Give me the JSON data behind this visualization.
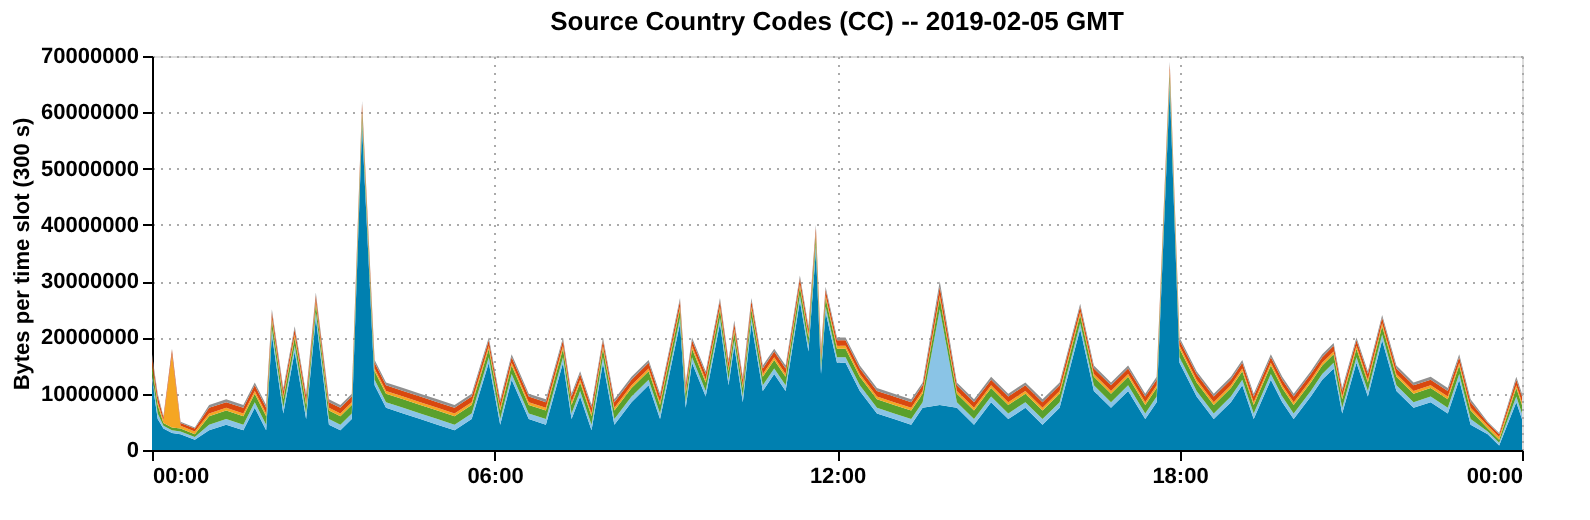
{
  "chart_data": {
    "type": "area",
    "stacked": true,
    "title": "Source Country Codes (CC) -- 2019-02-05 GMT",
    "ylabel": "Bytes per time slot (300 s)",
    "x": [
      0.0,
      0.1,
      0.2,
      0.35,
      0.5,
      0.75,
      1.0,
      1.3,
      1.6,
      1.8,
      2.0,
      2.1,
      2.3,
      2.5,
      2.7,
      2.87,
      3.1,
      3.3,
      3.5,
      3.68,
      3.9,
      4.1,
      4.4,
      4.7,
      5.0,
      5.3,
      5.6,
      5.9,
      6.1,
      6.3,
      6.6,
      6.9,
      7.2,
      7.35,
      7.5,
      7.7,
      7.9,
      8.1,
      8.4,
      8.7,
      8.9,
      9.25,
      9.35,
      9.46,
      9.7,
      9.95,
      10.1,
      10.2,
      10.35,
      10.5,
      10.7,
      10.9,
      11.1,
      11.35,
      11.5,
      11.63,
      11.72,
      11.8,
      12.0,
      12.15,
      12.4,
      12.7,
      13.0,
      13.3,
      13.5,
      13.8,
      14.1,
      14.4,
      14.7,
      15.0,
      15.3,
      15.6,
      15.9,
      16.26,
      16.5,
      16.8,
      17.1,
      17.4,
      17.6,
      17.83,
      18.0,
      18.3,
      18.6,
      18.9,
      19.1,
      19.3,
      19.6,
      19.8,
      20.0,
      20.3,
      20.5,
      20.7,
      20.85,
      21.1,
      21.3,
      21.55,
      21.8,
      22.1,
      22.4,
      22.7,
      22.9,
      23.1,
      23.4,
      23.6,
      23.9,
      24.0
    ],
    "series": [
      {
        "color": "#0080b0",
        "values": [
          12500000,
          5500000,
          3800000,
          3000000,
          2800000,
          1800000,
          3500000,
          4500000,
          3500000,
          7500000,
          3500000,
          20500000,
          6500000,
          17500000,
          5500000,
          23500000,
          4500000,
          3500000,
          5500000,
          57500000,
          11500000,
          7500000,
          6500000,
          5500000,
          4500000,
          3500000,
          5500000,
          15500000,
          4500000,
          12500000,
          5500000,
          4500000,
          15500000,
          5500000,
          9500000,
          3500000,
          15500000,
          4500000,
          8500000,
          11500000,
          5500000,
          22500000,
          7500000,
          15500000,
          9500000,
          22500000,
          11500000,
          18500000,
          8500000,
          22500000,
          10500000,
          13500000,
          10500000,
          26500000,
          17500000,
          35500000,
          13500000,
          24500000,
          15500000,
          15500000,
          10500000,
          6500000,
          5500000,
          4500000,
          7500000,
          8000000,
          7500000,
          4500000,
          8500000,
          5500000,
          7500000,
          4500000,
          7500000,
          21500000,
          10500000,
          7500000,
          10500000,
          5500000,
          8500000,
          64500000,
          15500000,
          9500000,
          5500000,
          8500000,
          11500000,
          5500000,
          12500000,
          8500000,
          5500000,
          9500000,
          12500000,
          14500000,
          6500000,
          15500000,
          9500000,
          19500000,
          10500000,
          7500000,
          8500000,
          6500000,
          12500000,
          4500000,
          2800000,
          800000,
          8500000,
          5500000
        ]
      },
      {
        "color": "#8ac4e6",
        "values": [
          1000000,
          1000000,
          500000,
          500000,
          500000,
          500000,
          1000000,
          1000000,
          1000000,
          1000000,
          1000000,
          1000000,
          1000000,
          1000000,
          1000000,
          1000000,
          1000000,
          1000000,
          1000000,
          1000000,
          1000000,
          1000000,
          1000000,
          1000000,
          1000000,
          1000000,
          1000000,
          1000000,
          1000000,
          1000000,
          1000000,
          1000000,
          1000000,
          1000000,
          1000000,
          1000000,
          1000000,
          1000000,
          1000000,
          1000000,
          1000000,
          1000000,
          1000000,
          1000000,
          1000000,
          1000000,
          1000000,
          1000000,
          1000000,
          1000000,
          1000000,
          1000000,
          1000000,
          1000000,
          1000000,
          1000000,
          1000000,
          1000000,
          1000000,
          1000000,
          1000000,
          1000000,
          1000000,
          1000000,
          1000000,
          17000000,
          1000000,
          1000000,
          1000000,
          1000000,
          1000000,
          1000000,
          1000000,
          1000000,
          1000000,
          1000000,
          1000000,
          1000000,
          1000000,
          1000000,
          1000000,
          1000000,
          1000000,
          1000000,
          1000000,
          1000000,
          1000000,
          1000000,
          1000000,
          1000000,
          1000000,
          1000000,
          1000000,
          1000000,
          1000000,
          1000000,
          1000000,
          1000000,
          1000000,
          1000000,
          1000000,
          1000000,
          500000,
          500000,
          1000000,
          1000000
        ]
      },
      {
        "color": "#5aa02c",
        "values": [
          1500000,
          1500000,
          500000,
          500000,
          500000,
          500000,
          1500000,
          1500000,
          1500000,
          1500000,
          1500000,
          1500000,
          1500000,
          1500000,
          1500000,
          1500000,
          1500000,
          1500000,
          1500000,
          1500000,
          1500000,
          1500000,
          1500000,
          1500000,
          1500000,
          1500000,
          1500000,
          1500000,
          1500000,
          1500000,
          1500000,
          1500000,
          1500000,
          1500000,
          1500000,
          1500000,
          1500000,
          1500000,
          1500000,
          1500000,
          1500000,
          1500000,
          1500000,
          1500000,
          1500000,
          1500000,
          1500000,
          1500000,
          1500000,
          1500000,
          1500000,
          1500000,
          1500000,
          1500000,
          1500000,
          1500000,
          1500000,
          1500000,
          1500000,
          1500000,
          1500000,
          1500000,
          1500000,
          1500000,
          1500000,
          2000000,
          1500000,
          1500000,
          1500000,
          1500000,
          1500000,
          1500000,
          1500000,
          1500000,
          1500000,
          1500000,
          1500000,
          1500000,
          1500000,
          1500000,
          1500000,
          1500000,
          1500000,
          1500000,
          1500000,
          1500000,
          1500000,
          1500000,
          1500000,
          1500000,
          1500000,
          1500000,
          1500000,
          1500000,
          1500000,
          1500000,
          1500000,
          1500000,
          1500000,
          1500000,
          1500000,
          1500000,
          500000,
          500000,
          1500000,
          1500000
        ]
      },
      {
        "color": "#f5a623",
        "values": [
          500000,
          500000,
          500000,
          13000000,
          500000,
          500000,
          500000,
          500000,
          500000,
          500000,
          500000,
          500000,
          500000,
          500000,
          500000,
          500000,
          500000,
          500000,
          500000,
          500000,
          500000,
          500000,
          500000,
          500000,
          500000,
          500000,
          500000,
          500000,
          500000,
          500000,
          500000,
          500000,
          500000,
          500000,
          500000,
          500000,
          500000,
          500000,
          500000,
          500000,
          500000,
          500000,
          500000,
          500000,
          500000,
          500000,
          500000,
          500000,
          500000,
          500000,
          500000,
          500000,
          500000,
          500000,
          500000,
          500000,
          500000,
          500000,
          500000,
          500000,
          500000,
          500000,
          500000,
          500000,
          500000,
          500000,
          500000,
          500000,
          500000,
          500000,
          500000,
          500000,
          500000,
          500000,
          500000,
          500000,
          500000,
          500000,
          500000,
          500000,
          500000,
          500000,
          500000,
          500000,
          500000,
          500000,
          500000,
          500000,
          500000,
          500000,
          500000,
          500000,
          500000,
          500000,
          500000,
          500000,
          500000,
          500000,
          500000,
          500000,
          500000,
          500000,
          500000,
          500000,
          500000,
          500000
        ]
      },
      {
        "color": "#d9480f",
        "values": [
          1000000,
          1000000,
          500000,
          800000,
          500000,
          500000,
          1000000,
          1000000,
          1000000,
          1000000,
          1000000,
          1000000,
          1000000,
          1000000,
          1000000,
          1000000,
          1000000,
          1000000,
          1000000,
          1000000,
          1000000,
          1000000,
          1000000,
          1000000,
          1000000,
          1000000,
          1000000,
          1000000,
          1000000,
          1000000,
          1000000,
          1000000,
          1000000,
          1000000,
          1000000,
          1000000,
          1000000,
          1000000,
          1000000,
          1000000,
          1000000,
          1000000,
          1000000,
          1000000,
          1000000,
          1000000,
          1000000,
          1000000,
          1000000,
          1000000,
          1000000,
          1000000,
          1000000,
          1000000,
          1000000,
          1000000,
          1000000,
          1000000,
          1000000,
          1000000,
          1000000,
          1000000,
          1000000,
          1000000,
          1000000,
          1500000,
          1000000,
          1000000,
          1000000,
          1000000,
          1000000,
          1000000,
          1000000,
          1000000,
          1000000,
          1000000,
          1000000,
          1000000,
          1000000,
          1000000,
          1000000,
          1000000,
          1000000,
          1000000,
          1000000,
          1000000,
          1000000,
          1000000,
          1000000,
          1000000,
          1000000,
          1000000,
          1000000,
          1000000,
          1000000,
          1000000,
          1000000,
          1000000,
          1000000,
          1000000,
          1000000,
          1000000,
          500000,
          500000,
          1000000,
          1000000
        ]
      },
      {
        "color": "#909090",
        "values": [
          500000,
          500000,
          200000,
          200000,
          200000,
          200000,
          500000,
          500000,
          500000,
          500000,
          500000,
          500000,
          500000,
          500000,
          500000,
          500000,
          500000,
          500000,
          500000,
          500000,
          500000,
          500000,
          500000,
          500000,
          500000,
          500000,
          500000,
          500000,
          500000,
          500000,
          500000,
          500000,
          500000,
          500000,
          500000,
          500000,
          500000,
          500000,
          500000,
          500000,
          500000,
          500000,
          500000,
          500000,
          500000,
          500000,
          500000,
          500000,
          500000,
          500000,
          500000,
          500000,
          500000,
          500000,
          500000,
          500000,
          500000,
          500000,
          500000,
          500000,
          500000,
          500000,
          500000,
          500000,
          500000,
          1000000,
          500000,
          500000,
          500000,
          500000,
          500000,
          500000,
          500000,
          500000,
          500000,
          500000,
          500000,
          500000,
          500000,
          500000,
          500000,
          500000,
          500000,
          500000,
          500000,
          500000,
          500000,
          500000,
          500000,
          500000,
          500000,
          500000,
          500000,
          500000,
          500000,
          500000,
          500000,
          500000,
          500000,
          500000,
          500000,
          500000,
          200000,
          200000,
          500000,
          500000
        ]
      }
    ],
    "xlim": [
      0,
      24
    ],
    "xticks": [
      {
        "value": 0,
        "label": "00:00"
      },
      {
        "value": 6,
        "label": "06:00"
      },
      {
        "value": 12,
        "label": "12:00"
      },
      {
        "value": 18,
        "label": "18:00"
      },
      {
        "value": 24,
        "label": "00:00"
      }
    ],
    "ylim": [
      0,
      70000000
    ],
    "yticks": [
      0,
      10000000,
      20000000,
      30000000,
      40000000,
      50000000,
      60000000,
      70000000
    ],
    "grid": true,
    "legend": false
  }
}
